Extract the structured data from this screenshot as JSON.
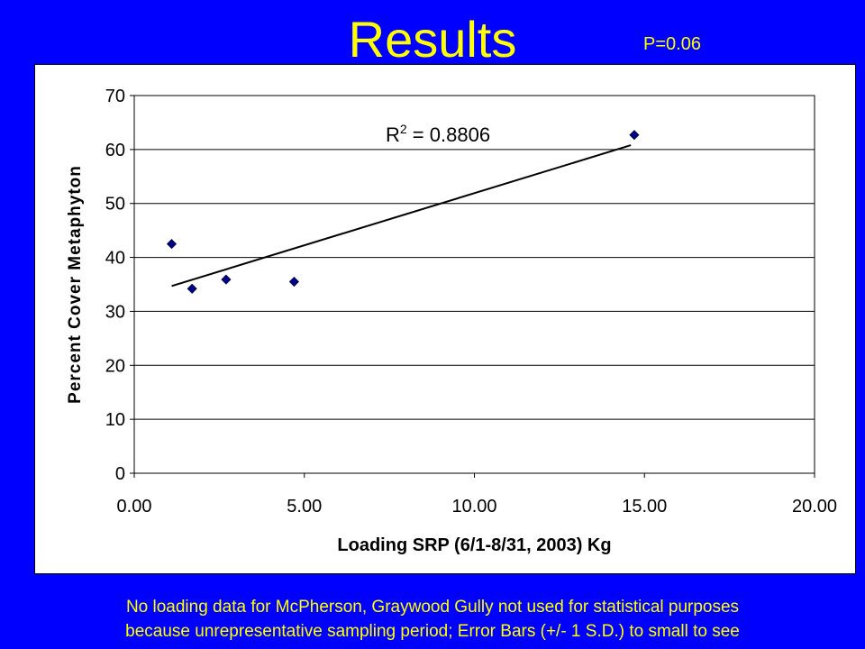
{
  "slide": {
    "title": "Results",
    "p_value": "P=0.06",
    "footnote_line1": "No loading data for McPherson, Graywood Gully not used for statistical purposes",
    "footnote_line2": "because unrepresentative sampling period; Error Bars (+/- 1 S.D.) to small to see"
  },
  "colors": {
    "background": "#0000FF",
    "title": "#FFFF00",
    "point": "#00008B",
    "trendline": "#000000"
  },
  "chart_data": {
    "type": "scatter",
    "title": "",
    "xlabel": "Loading SRP (6/1-8/31, 2003) Kg",
    "ylabel": "Percent Cover Metaphyton",
    "xlim": [
      0,
      20
    ],
    "ylim": [
      0,
      70
    ],
    "x_ticks": [
      "0.00",
      "5.00",
      "10.00",
      "15.00",
      "20.00"
    ],
    "y_ticks": [
      "0",
      "10",
      "20",
      "30",
      "40",
      "50",
      "60",
      "70"
    ],
    "grid": "horizontal",
    "legend": "none",
    "points": [
      {
        "x": 1.1,
        "y": 42.5
      },
      {
        "x": 1.7,
        "y": 34.2
      },
      {
        "x": 2.7,
        "y": 35.9
      },
      {
        "x": 4.7,
        "y": 35.5
      },
      {
        "x": 14.7,
        "y": 62.7
      }
    ],
    "trendline": {
      "type": "linear",
      "x_start": 1.1,
      "y_start": 34.7,
      "x_end": 14.6,
      "y_end": 60.8,
      "label_pre": "R",
      "label_sup": "2",
      "label_post": " = 0.8806"
    }
  }
}
